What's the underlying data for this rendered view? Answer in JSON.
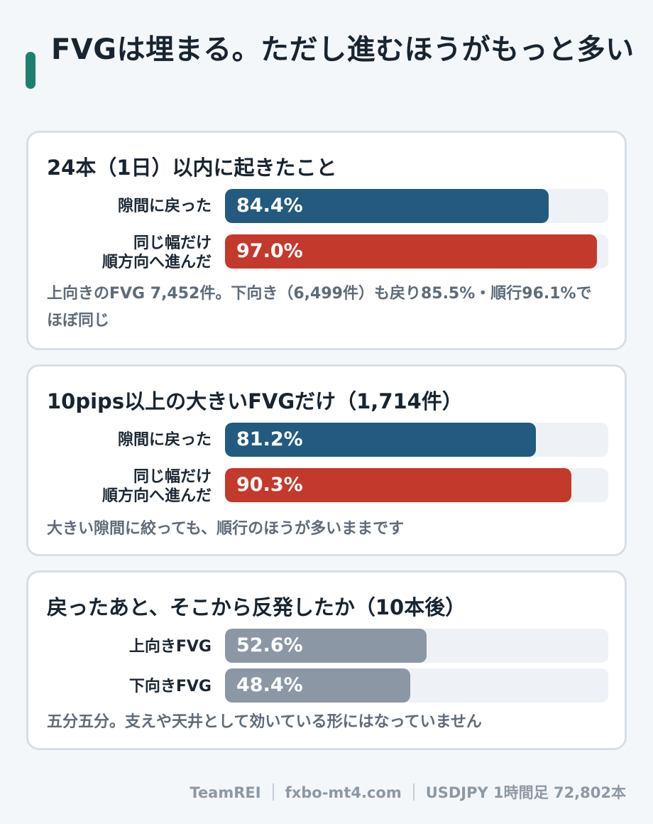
{
  "title": "FVGは埋まる。ただし進むほうがもっと多い",
  "colors": {
    "accent": "#1e7f6e",
    "returned": "#225a80",
    "continued": "#c3392b",
    "neutral": "#8b97a5"
  },
  "chart_data": [
    {
      "type": "bar",
      "orientation": "horizontal",
      "title": "24本（1日）以内に起きたこと",
      "categories": [
        "隙間に戻った",
        "同じ幅だけ\n順方向へ進んだ"
      ],
      "values": [
        84.4,
        97.0
      ],
      "value_labels": [
        "84.4%",
        "97.0%"
      ],
      "xlim": [
        0,
        100
      ],
      "note": "上向きのFVG 7,452件。下向き（6,499件）も戻り85.5%・順行96.1%でほぼ同じ"
    },
    {
      "type": "bar",
      "orientation": "horizontal",
      "title": "10pips以上の大きいFVGだけ（1,714件）",
      "categories": [
        "隙間に戻った",
        "同じ幅だけ\n順方向へ進んだ"
      ],
      "values": [
        81.2,
        90.3
      ],
      "value_labels": [
        "81.2%",
        "90.3%"
      ],
      "xlim": [
        0,
        100
      ],
      "note": "大きい隙間に絞っても、順行のほうが多いままです"
    },
    {
      "type": "bar",
      "orientation": "horizontal",
      "title": "戻ったあと、そこから反発したか（10本後）",
      "categories": [
        "上向きFVG",
        "下向きFVG"
      ],
      "values": [
        52.6,
        48.4
      ],
      "value_labels": [
        "52.6%",
        "48.4%"
      ],
      "xlim": [
        0,
        100
      ],
      "note": "五分五分。支えや天井として効いている形にはなっていません"
    }
  ],
  "footer": {
    "brand": "TeamREI",
    "site": "fxbo-mt4.com",
    "dataset": "USDJPY 1時間足 72,802本"
  }
}
